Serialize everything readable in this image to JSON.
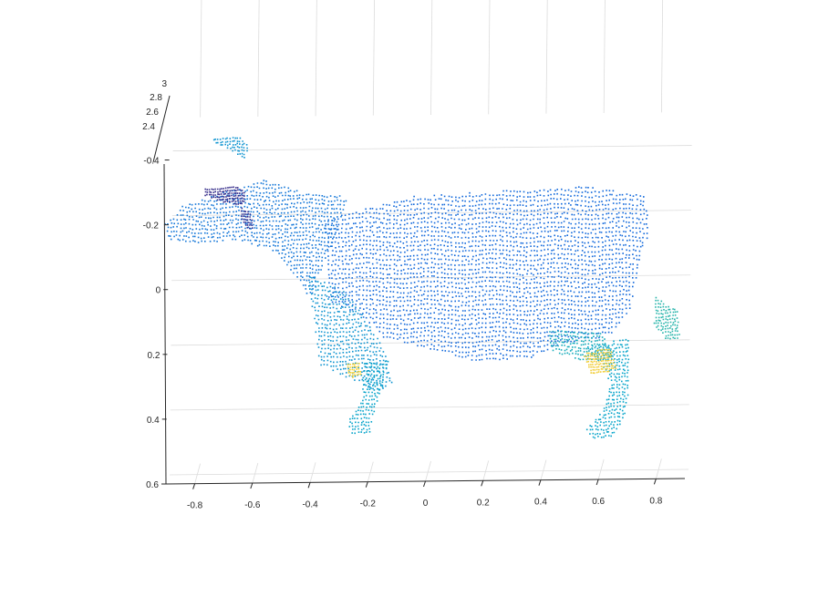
{
  "chart_data": {
    "type": "scatter3d",
    "title": "",
    "xlabel": "",
    "ylabel": "",
    "zlabel": "",
    "grid": true,
    "colormap": "parula",
    "colormap_stops": [
      "#352a87",
      "#0f5cdd",
      "#1481d6",
      "#06a4ca",
      "#2eb7a4",
      "#87bf77",
      "#d1bb59",
      "#fed429"
    ],
    "x_ticks": [
      "-0.8",
      "-0.6",
      "-0.4",
      "-0.2",
      "0",
      "0.2",
      "0.4",
      "0.6",
      "0.8"
    ],
    "y_ticks": [
      "-0.4",
      "-0.2",
      "0",
      "0.2",
      "0.4",
      "0.6"
    ],
    "z_ticks": [
      "2.4",
      "2.6",
      "2.8",
      "3"
    ],
    "xlim": [
      -0.9,
      0.9
    ],
    "ylim": [
      -0.5,
      0.6
    ],
    "zlim": [
      2.3,
      3
    ],
    "subject": "point cloud of a cow (side view)",
    "regions": [
      {
        "name": "head",
        "x": [
          -0.9,
          -0.55
        ],
        "y": [
          -0.45,
          -0.28
        ],
        "level": 0.25
      },
      {
        "name": "horn",
        "x": [
          -0.72,
          -0.58
        ],
        "y": [
          -0.66,
          -0.58
        ],
        "level": 0.35
      },
      {
        "name": "eye-dark",
        "x": [
          -0.72,
          -0.58
        ],
        "y": [
          -0.46,
          -0.34
        ],
        "level": 0.02
      },
      {
        "name": "neck",
        "x": [
          -0.6,
          -0.35
        ],
        "y": [
          -0.45,
          -0.05
        ],
        "level": 0.3
      },
      {
        "name": "body",
        "x": [
          -0.4,
          0.68
        ],
        "y": [
          -0.48,
          0.1
        ],
        "level": 0.22
      },
      {
        "name": "front-leg",
        "x": [
          -0.25,
          -0.12
        ],
        "y": [
          0.05,
          0.48
        ],
        "level": 0.42
      },
      {
        "name": "hind-leg",
        "x": [
          0.55,
          0.72
        ],
        "y": [
          0.05,
          0.48
        ],
        "level": 0.42
      },
      {
        "name": "tail",
        "x": [
          0.72,
          0.82
        ],
        "y": [
          -0.05,
          0.1
        ],
        "level": 0.55
      },
      {
        "name": "hoof-front",
        "x": [
          -0.27,
          -0.22
        ],
        "y": [
          0.15,
          0.2
        ],
        "level": 0.97
      },
      {
        "name": "hoof-hind",
        "x": [
          0.55,
          0.68
        ],
        "y": [
          0.08,
          0.2
        ],
        "level": 0.95
      }
    ]
  }
}
